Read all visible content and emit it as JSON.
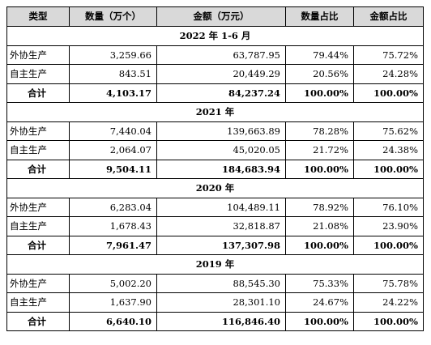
{
  "headers": [
    "类型",
    "数量（万个）",
    "金额（万元）",
    "数量占比",
    "金额占比"
  ],
  "sections": [
    {
      "title": "2022 年 1-6 月",
      "rows": [
        {
          "label": "外协生产",
          "qty": "3,259.66",
          "amount": "63,787.95",
          "qty_ratio": "79.44%",
          "amount_ratio": "75.72%"
        },
        {
          "label": "自主生产",
          "qty": "843.51",
          "amount": "20,449.29",
          "qty_ratio": "20.56%",
          "amount_ratio": "24.28%"
        }
      ],
      "total": {
        "label": "合计",
        "qty": "4,103.17",
        "amount": "84,237.24",
        "qty_ratio": "100.00%",
        "amount_ratio": "100.00%"
      }
    },
    {
      "title": "2021 年",
      "rows": [
        {
          "label": "外协生产",
          "qty": "7,440.04",
          "amount": "139,663.89",
          "qty_ratio": "78.28%",
          "amount_ratio": "75.62%"
        },
        {
          "label": "自主生产",
          "qty": "2,064.07",
          "amount": "45,020.05",
          "qty_ratio": "21.72%",
          "amount_ratio": "24.38%"
        }
      ],
      "total": {
        "label": "合计",
        "qty": "9,504.11",
        "amount": "184,683.94",
        "qty_ratio": "100.00%",
        "amount_ratio": "100.00%"
      }
    },
    {
      "title": "2020 年",
      "rows": [
        {
          "label": "外协生产",
          "qty": "6,283.04",
          "amount": "104,489.11",
          "qty_ratio": "78.92%",
          "amount_ratio": "76.10%"
        },
        {
          "label": "自主生产",
          "qty": "1,678.43",
          "amount": "32,818.87",
          "qty_ratio": "21.08%",
          "amount_ratio": "23.90%"
        }
      ],
      "total": {
        "label": "合计",
        "qty": "7,961.47",
        "amount": "137,307.98",
        "qty_ratio": "100.00%",
        "amount_ratio": "100.00%"
      }
    },
    {
      "title": "2019 年",
      "rows": [
        {
          "label": "外协生产",
          "qty": "5,002.20",
          "amount": "88,545.30",
          "qty_ratio": "75.33%",
          "amount_ratio": "75.78%"
        },
        {
          "label": "自主生产",
          "qty": "1,637.90",
          "amount": "28,301.10",
          "qty_ratio": "24.67%",
          "amount_ratio": "24.22%"
        }
      ],
      "total": {
        "label": "合计",
        "qty": "6,640.10",
        "amount": "116,846.40",
        "qty_ratio": "100.00%",
        "amount_ratio": "100.00%"
      }
    }
  ]
}
